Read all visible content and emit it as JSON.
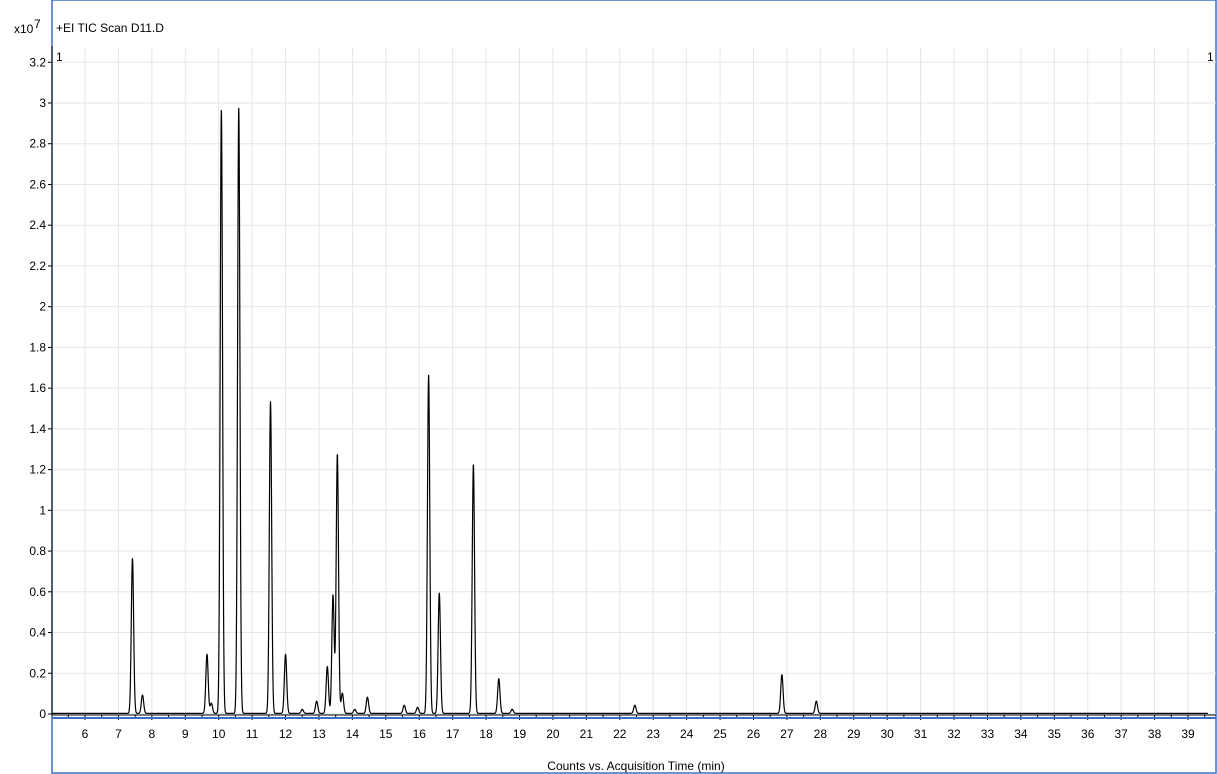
{
  "chart_data": {
    "type": "line",
    "title": "+EI TIC Scan D11.D",
    "y_multiplier_label": "x10",
    "y_multiplier_exponent": "7",
    "xlabel": "Counts vs. Acquisition Time (min)",
    "ylabel": "",
    "corner_label_left": "1",
    "corner_label_right": "1",
    "xlim": [
      5,
      39.6
    ],
    "ylim": [
      0,
      3.25
    ],
    "x_ticks": [
      6,
      7,
      8,
      9,
      10,
      11,
      12,
      13,
      14,
      15,
      16,
      17,
      18,
      19,
      20,
      21,
      22,
      23,
      24,
      25,
      26,
      27,
      28,
      29,
      30,
      31,
      32,
      33,
      34,
      35,
      36,
      37,
      38,
      39
    ],
    "y_ticks": [
      0,
      0.2,
      0.4,
      0.6,
      0.8,
      1,
      1.2,
      1.4,
      1.6,
      1.8,
      2,
      2.2,
      2.4,
      2.6,
      2.8,
      3,
      3.2
    ],
    "grid": true,
    "legend": "none",
    "peaks": [
      {
        "rt": 7.42,
        "height": 0.76
      },
      {
        "rt": 7.72,
        "height": 0.09
      },
      {
        "rt": 9.65,
        "height": 0.29
      },
      {
        "rt": 9.78,
        "height": 0.05
      },
      {
        "rt": 10.08,
        "height": 2.96
      },
      {
        "rt": 10.6,
        "height": 2.97
      },
      {
        "rt": 11.55,
        "height": 1.53
      },
      {
        "rt": 12.0,
        "height": 0.29
      },
      {
        "rt": 12.5,
        "height": 0.02
      },
      {
        "rt": 12.93,
        "height": 0.06
      },
      {
        "rt": 13.25,
        "height": 0.23
      },
      {
        "rt": 13.42,
        "height": 0.58
      },
      {
        "rt": 13.55,
        "height": 1.27
      },
      {
        "rt": 13.7,
        "height": 0.1
      },
      {
        "rt": 14.07,
        "height": 0.02
      },
      {
        "rt": 14.45,
        "height": 0.08
      },
      {
        "rt": 15.55,
        "height": 0.04
      },
      {
        "rt": 15.95,
        "height": 0.03
      },
      {
        "rt": 16.28,
        "height": 1.66
      },
      {
        "rt": 16.6,
        "height": 0.59
      },
      {
        "rt": 17.62,
        "height": 1.22
      },
      {
        "rt": 18.38,
        "height": 0.17
      },
      {
        "rt": 18.78,
        "height": 0.02
      },
      {
        "rt": 22.45,
        "height": 0.04
      },
      {
        "rt": 26.85,
        "height": 0.19
      },
      {
        "rt": 27.88,
        "height": 0.06
      }
    ]
  }
}
